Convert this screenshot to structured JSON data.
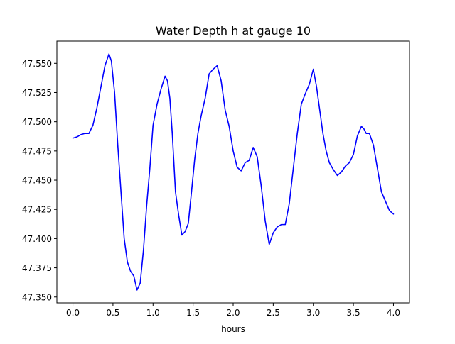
{
  "chart_data": {
    "type": "line",
    "title": "Water Depth h at gauge 10",
    "xlabel": "hours",
    "ylabel": "",
    "xlim": [
      -0.2,
      4.2
    ],
    "ylim": [
      47.345,
      47.569
    ],
    "xticks": [
      0.0,
      0.5,
      1.0,
      1.5,
      2.0,
      2.5,
      3.0,
      3.5,
      4.0
    ],
    "xtick_labels": [
      "0.0",
      "0.5",
      "1.0",
      "1.5",
      "2.0",
      "2.5",
      "3.0",
      "3.5",
      "4.0"
    ],
    "yticks": [
      47.35,
      47.375,
      47.4,
      47.425,
      47.45,
      47.475,
      47.5,
      47.525,
      47.55
    ],
    "ytick_labels": [
      "47.350",
      "47.375",
      "47.400",
      "47.425",
      "47.450",
      "47.475",
      "47.500",
      "47.525",
      "47.550"
    ],
    "grid": false,
    "series": [
      {
        "color": "#0000ff",
        "x": [
          0.0,
          0.05,
          0.1,
          0.15,
          0.2,
          0.25,
          0.3,
          0.35,
          0.4,
          0.45,
          0.48,
          0.52,
          0.56,
          0.6,
          0.64,
          0.68,
          0.72,
          0.76,
          0.8,
          0.84,
          0.88,
          0.92,
          0.96,
          1.0,
          1.05,
          1.1,
          1.15,
          1.18,
          1.21,
          1.24,
          1.28,
          1.32,
          1.36,
          1.4,
          1.44,
          1.48,
          1.52,
          1.56,
          1.6,
          1.65,
          1.7,
          1.75,
          1.8,
          1.85,
          1.9,
          1.95,
          2.0,
          2.05,
          2.1,
          2.15,
          2.2,
          2.25,
          2.3,
          2.35,
          2.4,
          2.45,
          2.5,
          2.55,
          2.6,
          2.65,
          2.7,
          2.75,
          2.8,
          2.85,
          2.9,
          2.95,
          3.0,
          3.04,
          3.08,
          3.12,
          3.16,
          3.2,
          3.25,
          3.3,
          3.35,
          3.4,
          3.45,
          3.5,
          3.55,
          3.6,
          3.63,
          3.66,
          3.7,
          3.75,
          3.8,
          3.85,
          3.9,
          3.95,
          4.0
        ],
        "y": [
          47.486,
          47.487,
          47.489,
          47.49,
          47.49,
          47.497,
          47.512,
          47.53,
          47.548,
          47.558,
          47.552,
          47.525,
          47.48,
          47.44,
          47.4,
          47.38,
          47.372,
          47.368,
          47.356,
          47.362,
          47.39,
          47.428,
          47.46,
          47.497,
          47.515,
          47.528,
          47.539,
          47.535,
          47.52,
          47.49,
          47.44,
          47.42,
          47.403,
          47.406,
          47.413,
          47.44,
          47.468,
          47.49,
          47.505,
          47.52,
          47.541,
          47.545,
          47.548,
          47.535,
          47.51,
          47.496,
          47.475,
          47.461,
          47.458,
          47.465,
          47.467,
          47.478,
          47.47,
          47.445,
          47.415,
          47.395,
          47.405,
          47.41,
          47.412,
          47.412,
          47.43,
          47.46,
          47.49,
          47.515,
          47.524,
          47.532,
          47.545,
          47.53,
          47.51,
          47.49,
          47.475,
          47.465,
          47.459,
          47.454,
          47.457,
          47.462,
          47.465,
          47.472,
          47.488,
          47.496,
          47.494,
          47.49,
          47.49,
          47.48,
          47.46,
          47.44,
          47.432,
          47.424,
          47.421
        ]
      }
    ]
  }
}
